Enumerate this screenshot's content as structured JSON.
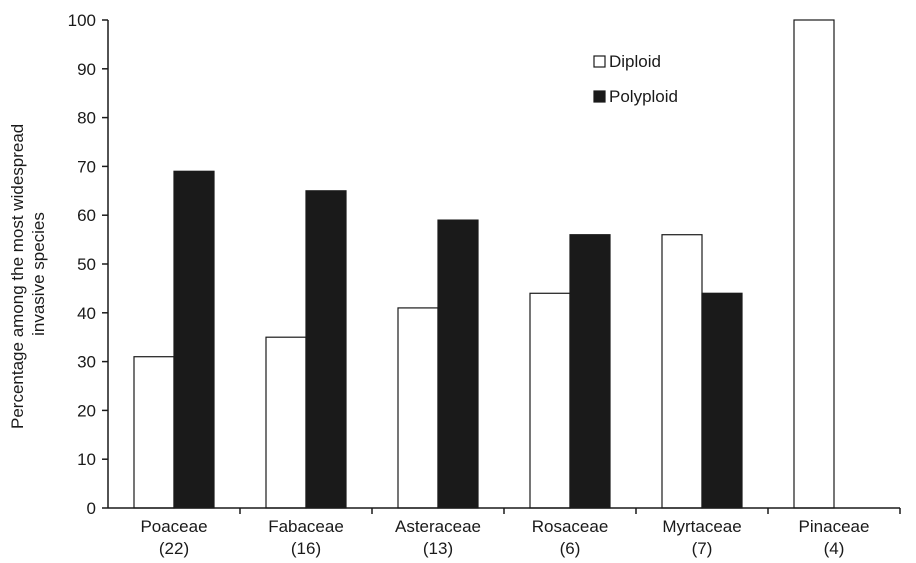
{
  "chart_data": {
    "type": "bar",
    "title": "",
    "xlabel": "",
    "ylabel_lines": [
      "Percentage among the most widespread",
      "invasive species"
    ],
    "ylim": [
      0,
      100
    ],
    "yticks": [
      0,
      10,
      20,
      30,
      40,
      50,
      60,
      70,
      80,
      90,
      100
    ],
    "categories": [
      {
        "name": "Poaceae",
        "count": "(22)"
      },
      {
        "name": "Fabaceae",
        "count": "(16)"
      },
      {
        "name": "Asteraceae",
        "count": "(13)"
      },
      {
        "name": "Rosaceae",
        "count": "(6)"
      },
      {
        "name": "Myrtaceae",
        "count": "(7)"
      },
      {
        "name": "Pinaceae",
        "count": "(4)"
      }
    ],
    "series": [
      {
        "name": "Diploid",
        "color": "#ffffff",
        "values": [
          31,
          35,
          41,
          44,
          56,
          100
        ]
      },
      {
        "name": "Polyploid",
        "color": "#1a1a1a",
        "values": [
          69,
          65,
          59,
          56,
          44,
          0
        ]
      }
    ],
    "legend_position": "top-right",
    "grid": false
  }
}
